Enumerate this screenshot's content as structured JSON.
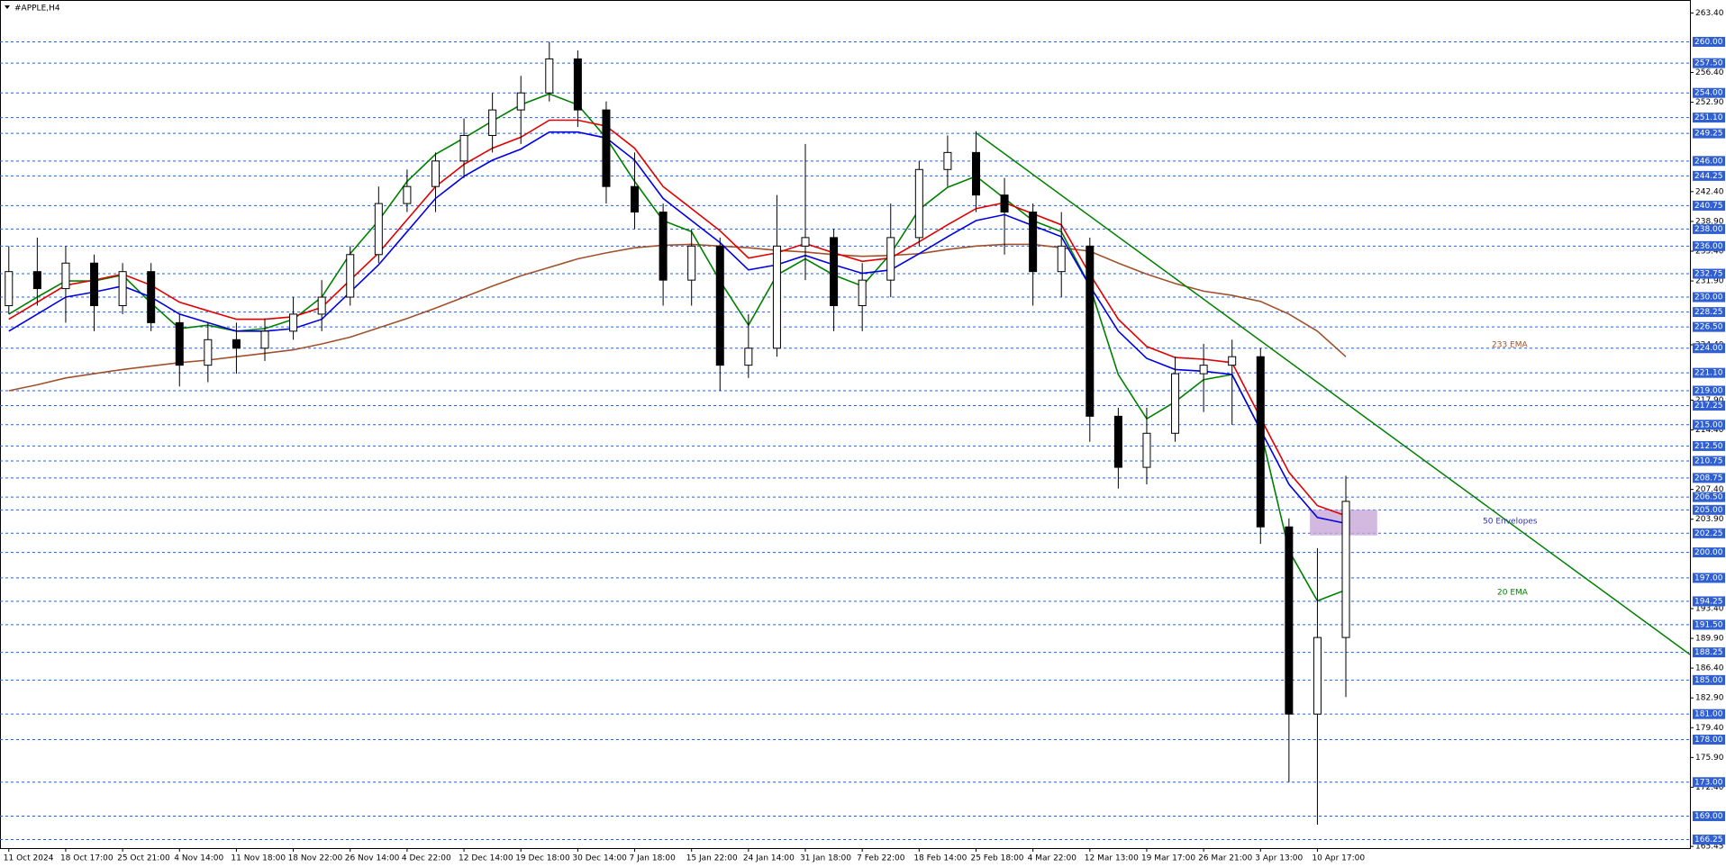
{
  "chart_data": {
    "type": "candlestick",
    "title": "#APPLE,H4",
    "categories": [
      "11 Oct 2024",
      null,
      "18 Oct 17:00",
      null,
      "25 Oct 21:00",
      null,
      "4 Nov 14:00",
      null,
      "11 Nov 18:00",
      null,
      "18 Nov 22:00",
      null,
      "26 Nov 14:00",
      null,
      "4 Dec 22:00",
      null,
      "12 Dec 14:00",
      null,
      "19 Dec 18:00",
      null,
      "30 Dec 14:00",
      null,
      "7 Jan 18:00",
      null,
      "15 Jan 22:00",
      null,
      "24 Jan 14:00",
      null,
      "31 Jan 18:00",
      null,
      "7 Feb 22:00",
      null,
      "18 Feb 14:00",
      null,
      "25 Feb 18:00",
      null,
      "4 Mar 22:00",
      null,
      "12 Mar 13:00",
      null,
      "19 Mar 17:00",
      null,
      "26 Mar 21:00",
      null,
      "3 Apr 13:00",
      null,
      "10 Apr 17:00",
      null
    ],
    "open": [
      229,
      233,
      231,
      234,
      229,
      233,
      227,
      222,
      225,
      224,
      226,
      228,
      230,
      235,
      241,
      243,
      246,
      249,
      252,
      254,
      258,
      252,
      243,
      240,
      232,
      236,
      222,
      224,
      236,
      237,
      229,
      232,
      237,
      245,
      247,
      242,
      240,
      233,
      236,
      216,
      210,
      214,
      221,
      222,
      223,
      203,
      181,
      190
    ],
    "high": [
      236,
      237,
      236,
      235,
      234,
      234,
      228,
      227,
      227,
      227.5,
      230,
      232,
      236,
      243,
      245,
      247,
      251,
      254,
      256,
      260,
      259,
      253,
      247,
      241,
      238,
      237,
      228,
      242,
      248,
      238,
      234,
      241,
      246,
      249,
      249.5,
      244,
      241,
      240,
      237,
      217,
      217,
      223,
      224.5,
      225,
      224,
      204,
      200.5,
      209
    ],
    "low": [
      228,
      229,
      227,
      226,
      228,
      226,
      219.5,
      220,
      221,
      222.5,
      225,
      226,
      229,
      234,
      240,
      240,
      244,
      247,
      248,
      253,
      250,
      241,
      238,
      229,
      229,
      219,
      220.5,
      223,
      232,
      226,
      226,
      230,
      236,
      243,
      240,
      235,
      229,
      230,
      213,
      207.5,
      208,
      213,
      216.5,
      215,
      201,
      173,
      168,
      183
    ],
    "close": [
      233,
      231,
      234,
      229,
      233,
      227,
      222,
      225,
      224,
      226,
      228,
      230,
      235,
      241,
      243,
      246,
      249,
      252,
      254,
      258,
      252,
      243,
      240,
      232,
      236,
      222,
      224,
      236,
      237,
      229,
      232,
      237,
      245,
      247,
      242,
      240,
      233,
      236,
      216,
      210,
      214,
      221,
      222,
      223,
      203,
      181,
      190,
      206
    ],
    "up_color": "#ffffff",
    "down_color": "#000000",
    "series": [
      {
        "name": "233 EMA",
        "color": "#a0522d",
        "values": [
          219,
          219.7,
          220.5,
          221,
          221.5,
          221.9,
          222.3,
          222.6,
          223,
          223.4,
          223.8,
          224.5,
          225.3,
          226.4,
          227.5,
          228.7,
          230,
          231.3,
          232.5,
          233.5,
          234.5,
          235.2,
          235.8,
          236.1,
          236.2,
          236,
          235.8,
          235.5,
          235.3,
          235,
          234.8,
          234.9,
          235.1,
          235.6,
          236,
          236.2,
          236.2,
          235.8,
          235.4,
          234,
          232.7,
          231.6,
          230.7,
          230.2,
          229.5,
          228,
          226,
          223
        ]
      },
      {
        "name": "20 EMA",
        "color": "#008000",
        "values": [
          228,
          230,
          231.9,
          231.9,
          232.6,
          229.3,
          226.3,
          226.7,
          226,
          226.3,
          227.4,
          230,
          235.1,
          239,
          243.6,
          246.8,
          248.7,
          250.7,
          252.6,
          253.9,
          252.6,
          248.7,
          243.6,
          239,
          237.7,
          231.9,
          226.7,
          232.6,
          234.5,
          232.6,
          231.3,
          235.1,
          240.3,
          242.9,
          244.2,
          241.6,
          239,
          237.7,
          231.3,
          220.9,
          215.7,
          217.7,
          220.3,
          220.9,
          214.4,
          200.2,
          194.3,
          195.6
        ]
      }
    ],
    "envelopes": {
      "name": "50 Envelopes",
      "color": "#3030c0",
      "upper_color": "#e00000",
      "lower_color": "#0000e0",
      "upper": [
        227.4,
        229.4,
        231.4,
        232,
        232.7,
        231.4,
        229.4,
        228.4,
        227.4,
        227.4,
        227.7,
        228.8,
        232,
        235.2,
        239.1,
        243,
        245.6,
        247.5,
        248.8,
        250.8,
        250.8,
        250.1,
        247.5,
        243,
        240.4,
        237.8,
        234.6,
        235.2,
        236.3,
        235.2,
        234.2,
        234.6,
        236.5,
        238.5,
        240.4,
        241.1,
        239.8,
        238.5,
        232.7,
        227.4,
        224.2,
        222.9,
        222.7,
        222.3,
        215.8,
        209.4,
        205.5,
        204.3
      ],
      "lower": [
        226,
        228,
        230,
        230.6,
        231.3,
        230,
        228,
        227,
        226,
        226,
        226.3,
        227.4,
        230.6,
        233.8,
        237.7,
        241.6,
        244.2,
        246.1,
        247.4,
        249.4,
        249.4,
        248.7,
        246.1,
        241.6,
        239,
        236.4,
        233.2,
        233.8,
        234.9,
        233.8,
        232.8,
        233.2,
        235.1,
        237.1,
        239,
        239.7,
        238.4,
        237.1,
        231.3,
        226,
        222.8,
        221.5,
        221.3,
        220.9,
        214.4,
        208,
        204.1,
        203.4
      ]
    },
    "trendline": [
      249.3,
      188.0
    ],
    "trendline_color": "#008000",
    "zone": [
      205.0,
      202.0
    ],
    "zone_color": "#c8a8d8",
    "ylim": [
      165.25,
      264.92
    ],
    "yticks": [
      {
        "value": 263.4,
        "label": "263.40"
      },
      {
        "value": 256.4,
        "label": "256.40"
      },
      {
        "value": 252.9,
        "label": "252.90"
      },
      {
        "value": 242.4,
        "label": "242.40"
      },
      {
        "value": 238.9,
        "label": "238.90"
      },
      {
        "value": 235.4,
        "label": "235.40"
      },
      {
        "value": 231.9,
        "label": "231.90"
      },
      {
        "value": 224.4,
        "label": "224.40"
      },
      {
        "value": 217.9,
        "label": "217.90"
      },
      {
        "value": 214.4,
        "label": "214.40"
      },
      {
        "value": 207.4,
        "label": "207.40"
      },
      {
        "value": 203.9,
        "label": "203.90"
      },
      {
        "value": 193.4,
        "label": "193.40"
      },
      {
        "value": 189.9,
        "label": "189.90"
      },
      {
        "value": 186.4,
        "label": "186.40"
      },
      {
        "value": 182.9,
        "label": "182.90"
      },
      {
        "value": 179.4,
        "label": "179.40"
      },
      {
        "value": 175.9,
        "label": "175.90"
      },
      {
        "value": 172.4,
        "label": "172.40"
      },
      {
        "value": 165.45,
        "label": "165.45"
      }
    ],
    "levels": [
      {
        "value": 260,
        "label": "260.00"
      },
      {
        "value": 257.5,
        "label": "257.50"
      },
      {
        "value": 254,
        "label": "254.00"
      },
      {
        "value": 251.1,
        "label": "251.10"
      },
      {
        "value": 249.25,
        "label": "249.25"
      },
      {
        "value": 246,
        "label": "246.00"
      },
      {
        "value": 244.25,
        "label": "244.25"
      },
      {
        "value": 240.75,
        "label": "240.75"
      },
      {
        "value": 238,
        "label": "238.00"
      },
      {
        "value": 236,
        "label": "236.00"
      },
      {
        "value": 232.75,
        "label": "232.75"
      },
      {
        "value": 230,
        "label": "230.00"
      },
      {
        "value": 228.25,
        "label": "228.25"
      },
      {
        "value": 226.5,
        "label": "226.50"
      },
      {
        "value": 224,
        "label": "224.00"
      },
      {
        "value": 221.1,
        "label": "221.10"
      },
      {
        "value": 219,
        "label": "219.00"
      },
      {
        "value": 217.25,
        "label": "217.25"
      },
      {
        "value": 215,
        "label": "215.00"
      },
      {
        "value": 212.5,
        "label": "212.50"
      },
      {
        "value": 210.75,
        "label": "210.75"
      },
      {
        "value": 208.75,
        "label": "208.75"
      },
      {
        "value": 206.5,
        "label": "206.50"
      },
      {
        "value": 205,
        "label": "205.00"
      },
      {
        "value": 202.25,
        "label": "202.25"
      },
      {
        "value": 200,
        "label": "200.00"
      },
      {
        "value": 197,
        "label": "197.00"
      },
      {
        "value": 194.25,
        "label": "194.25"
      },
      {
        "value": 191.5,
        "label": "191.50"
      },
      {
        "value": 188.25,
        "label": "188.25"
      },
      {
        "value": 185,
        "label": "185.00"
      },
      {
        "value": 181,
        "label": "181.00"
      },
      {
        "value": 178,
        "label": "178.00"
      },
      {
        "value": 173,
        "label": "173.00"
      },
      {
        "value": 169,
        "label": "169.00"
      },
      {
        "value": 166.25,
        "label": "166.25"
      }
    ],
    "level_color": "#2f5fd0"
  }
}
